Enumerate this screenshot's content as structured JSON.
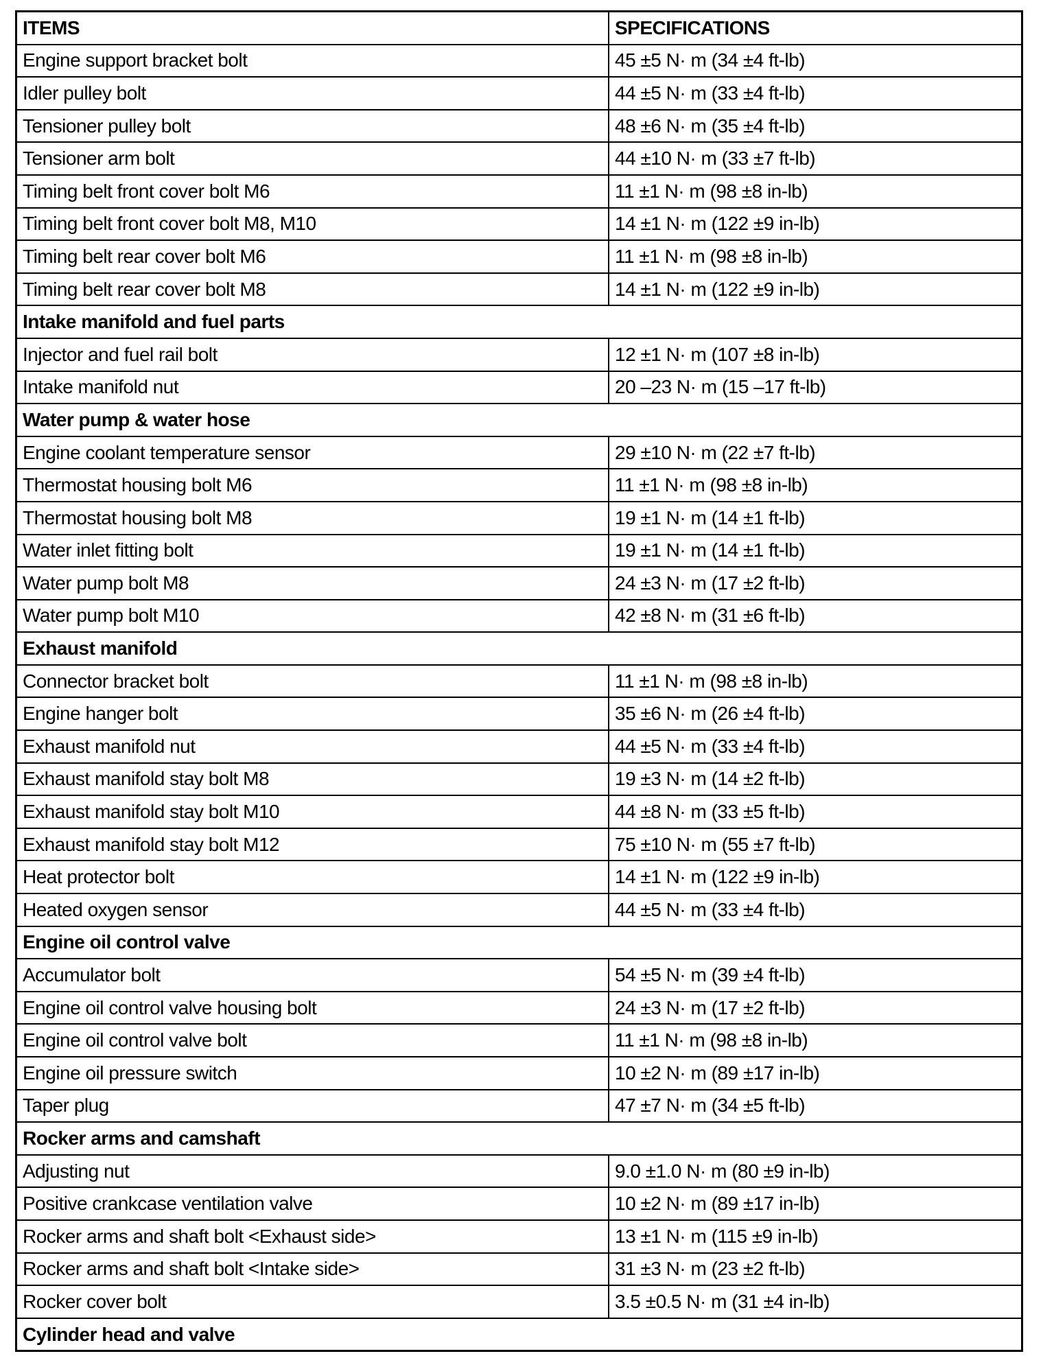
{
  "header": {
    "items": "ITEMS",
    "specifications": "SPECIFICATIONS"
  },
  "rows": [
    {
      "item": "Engine support bracket bolt",
      "spec": "45 ±5 N· m (34 ±4 ft-lb)"
    },
    {
      "item": "Idler pulley bolt",
      "spec": "44 ±5 N· m (33 ±4 ft-lb)"
    },
    {
      "item": "Tensioner pulley bolt",
      "spec": "48 ±6 N· m (35 ±4 ft-lb)"
    },
    {
      "item": "Tensioner arm bolt",
      "spec": "44 ±10 N· m (33 ±7 ft-lb)"
    },
    {
      "item": "Timing belt front cover bolt M6",
      "spec": "11 ±1 N· m (98 ±8 in-lb)"
    },
    {
      "item": "Timing belt front cover bolt M8, M10",
      "spec": "14 ±1 N· m (122 ±9 in-lb)"
    },
    {
      "item": "Timing belt rear cover bolt M6",
      "spec": "11 ±1 N· m (98 ±8 in-lb)"
    },
    {
      "item": "Timing belt rear cover bolt M8",
      "spec": "14 ±1 N· m (122 ±9 in-lb)"
    },
    {
      "section": "Intake manifold and fuel parts"
    },
    {
      "item": "Injector and fuel rail bolt",
      "spec": "12 ±1 N· m (107 ±8 in-lb)"
    },
    {
      "item": "Intake manifold nut",
      "spec": "20 –23 N· m (15 –17 ft-lb)"
    },
    {
      "section": "Water pump & water hose"
    },
    {
      "item": "Engine coolant temperature sensor",
      "spec": "29 ±10 N· m (22 ±7 ft-lb)"
    },
    {
      "item": "Thermostat housing bolt M6",
      "spec": "11 ±1 N· m (98 ±8 in-lb)"
    },
    {
      "item": "Thermostat housing bolt M8",
      "spec": "19 ±1 N· m (14 ±1 ft-lb)"
    },
    {
      "item": "Water inlet fitting bolt",
      "spec": "19 ±1 N· m (14 ±1 ft-lb)"
    },
    {
      "item": "Water pump bolt M8",
      "spec": "24 ±3 N· m (17 ±2 ft-lb)"
    },
    {
      "item": "Water pump bolt M10",
      "spec": "42 ±8 N· m (31 ±6 ft-lb)"
    },
    {
      "section": "Exhaust manifold"
    },
    {
      "item": "Connector bracket bolt",
      "spec": "11 ±1 N· m (98 ±8 in-lb)"
    },
    {
      "item": "Engine hanger bolt",
      "spec": "35 ±6 N· m (26 ±4 ft-lb)"
    },
    {
      "item": "Exhaust manifold nut",
      "spec": "44 ±5 N· m (33 ±4 ft-lb)"
    },
    {
      "item": "Exhaust manifold stay bolt M8",
      "spec": "19 ±3 N· m (14 ±2 ft-lb)"
    },
    {
      "item": "Exhaust manifold stay bolt M10",
      "spec": "44 ±8 N· m (33 ±5 ft-lb)"
    },
    {
      "item": "Exhaust manifold stay bolt M12",
      "spec": "75 ±10 N· m (55 ±7 ft-lb)"
    },
    {
      "item": "Heat protector bolt",
      "spec": "14 ±1 N· m (122 ±9 in-lb)"
    },
    {
      "item": "Heated oxygen sensor",
      "spec": "44 ±5 N· m (33 ±4 ft-lb)"
    },
    {
      "section": "Engine oil control valve"
    },
    {
      "item": "Accumulator bolt",
      "spec": "54 ±5 N· m (39 ±4 ft-lb)"
    },
    {
      "item": "Engine oil control valve housing bolt",
      "spec": "24 ±3 N· m (17 ±2 ft-lb)"
    },
    {
      "item": "Engine oil control valve bolt",
      "spec": "11 ±1 N· m (98 ±8 in-lb)"
    },
    {
      "item": "Engine oil pressure switch",
      "spec": "10 ±2 N· m (89 ±17 in-lb)"
    },
    {
      "item": "Taper plug",
      "spec": "47 ±7 N· m (34 ±5 ft-lb)"
    },
    {
      "section": "Rocker arms and camshaft"
    },
    {
      "item": "Adjusting nut",
      "spec": "9.0 ±1.0 N· m (80 ±9 in-lb)"
    },
    {
      "item": "Positive crankcase ventilation valve",
      "spec": "10 ±2 N· m (89 ±17 in-lb)"
    },
    {
      "item": "Rocker arms and shaft bolt <Exhaust side>",
      "spec": "13 ±1 N· m (115 ±9 in-lb)"
    },
    {
      "item": "Rocker arms and shaft bolt <Intake side>",
      "spec": "31 ±3 N· m (23 ±2 ft-lb)"
    },
    {
      "item": "Rocker cover bolt",
      "spec": "3.5 ±0.5 N· m (31 ±4 in-lb)"
    },
    {
      "section": "Cylinder head and valve"
    }
  ]
}
